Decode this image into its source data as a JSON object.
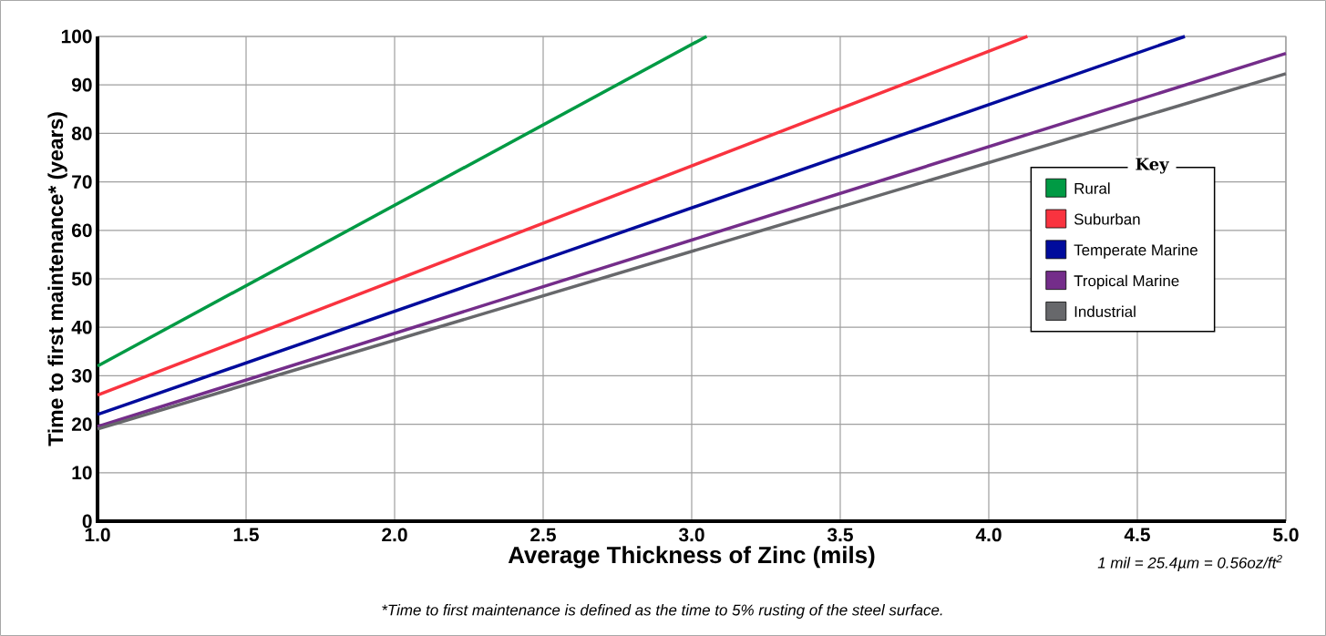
{
  "chart_data": {
    "type": "line",
    "xlabel": "Average Thickness of Zinc (mils)",
    "ylabel": "Time to first maintenance* (years)",
    "legend_title": "Key",
    "series": [
      {
        "name": "Rural",
        "color": "#009a44",
        "x": [
          1.0,
          3.05
        ],
        "values": [
          32,
          100
        ]
      },
      {
        "name": "Suburban",
        "color": "#f9333f",
        "x": [
          1.0,
          4.13
        ],
        "values": [
          26,
          100
        ]
      },
      {
        "name": "Temperate Marine",
        "color": "#000b9c",
        "x": [
          1.0,
          4.66
        ],
        "values": [
          22,
          100
        ]
      },
      {
        "name": "Tropical Marine",
        "color": "#742d8a",
        "x": [
          1.0,
          5.0
        ],
        "values": [
          19.5,
          96.5
        ]
      },
      {
        "name": "Industrial",
        "color": "#67686b",
        "x": [
          1.0,
          5.0
        ],
        "values": [
          19,
          92.3
        ]
      }
    ],
    "xlim": [
      1.0,
      5.0
    ],
    "ylim": [
      0,
      100
    ],
    "xticks": [
      {
        "value": 1.0,
        "label": "1.0"
      },
      {
        "value": 1.5,
        "label": "1.5"
      },
      {
        "value": 2.0,
        "label": "2.0"
      },
      {
        "value": 2.5,
        "label": "2.5"
      },
      {
        "value": 3.0,
        "label": "3.0"
      },
      {
        "value": 3.5,
        "label": "3.5"
      },
      {
        "value": 4.0,
        "label": "4.0"
      },
      {
        "value": 4.5,
        "label": "4.5"
      },
      {
        "value": 5.0,
        "label": "5.0"
      }
    ],
    "yticks": [
      0,
      10,
      20,
      30,
      40,
      50,
      60,
      70,
      80,
      90,
      100
    ],
    "grid": true,
    "legend": "right",
    "marker": "none",
    "line_style": "solid",
    "annotations": [
      "1 mil = 25.4µm = 0.56oz/ft$^{2}$",
      "*Time to first maintenance is defined as the time to 5% rusting of the steel surface."
    ]
  }
}
